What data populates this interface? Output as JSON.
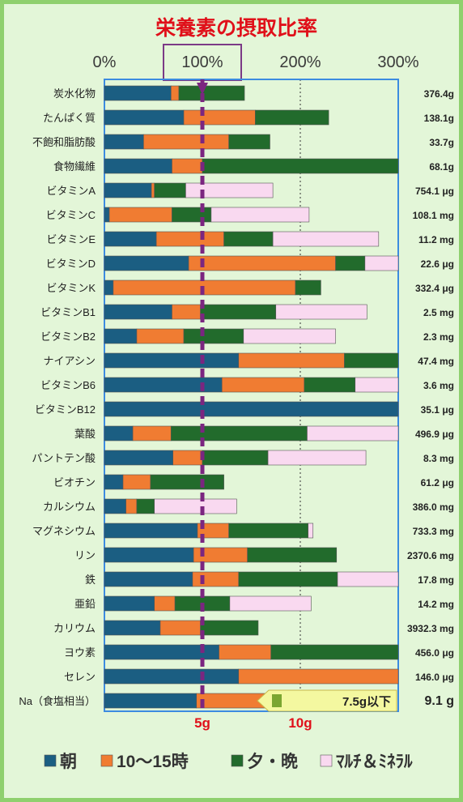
{
  "chart_data": {
    "type": "bar",
    "stacked": true,
    "orientation": "horizontal",
    "title": "栄養素の摂取比率",
    "x_ticks": [
      "0%",
      "100%",
      "200%",
      "300%"
    ],
    "xlim": [
      0,
      300
    ],
    "reference_line_label": "100%",
    "grid": true,
    "legend_position": "bottom",
    "series": [
      {
        "name": "朝",
        "color": "#1b5e82"
      },
      {
        "name": "10～15時",
        "color": "#f07c32"
      },
      {
        "name": "夕・晩",
        "color": "#226b2c"
      },
      {
        "name": "ﾏﾙﾁ＆ﾐﾈﾗﾙ",
        "color": "#f9d9f0"
      }
    ],
    "categories": [
      {
        "name": "炭水化物",
        "values": [
          68,
          8,
          67,
          0
        ],
        "amount": "376.4g"
      },
      {
        "name": "たんぱく質",
        "values": [
          81,
          73,
          75,
          0
        ],
        "amount": "138.1g"
      },
      {
        "name": "不飽和脂肪酸",
        "values": [
          40,
          87,
          42,
          0
        ],
        "amount": "33.7g"
      },
      {
        "name": "食物繊維",
        "values": [
          69,
          31,
          200,
          0
        ],
        "amount": "68.1g"
      },
      {
        "name": "ビタミンA",
        "values": [
          48,
          3,
          32,
          89
        ],
        "amount": "754.1 μg"
      },
      {
        "name": "ビタミンC",
        "values": [
          5,
          64,
          40,
          100
        ],
        "amount": "108.1 mg"
      },
      {
        "name": "ビタミンE",
        "values": [
          53,
          69,
          50,
          108
        ],
        "amount": "11.2 mg"
      },
      {
        "name": "ビタミンD",
        "values": [
          86,
          150,
          30,
          34
        ],
        "amount": "22.6 μg"
      },
      {
        "name": "ビタミンK",
        "values": [
          9,
          186,
          26,
          0
        ],
        "amount": "332.4 μg"
      },
      {
        "name": "ビタミンB1",
        "values": [
          69,
          29,
          77,
          93
        ],
        "amount": "2.5 mg"
      },
      {
        "name": "ビタミンB2",
        "values": [
          33,
          48,
          61,
          94
        ],
        "amount": "2.3 mg"
      },
      {
        "name": "ナイアシン",
        "values": [
          137,
          108,
          55,
          0
        ],
        "amount": "47.4 mg"
      },
      {
        "name": "ビタミンB6",
        "values": [
          120,
          84,
          52,
          44
        ],
        "amount": "3.6 mg"
      },
      {
        "name": "ビタミンB12",
        "values": [
          300,
          0,
          0,
          0
        ],
        "amount": "35.1 μg"
      },
      {
        "name": "葉酸",
        "values": [
          29,
          39,
          139,
          93
        ],
        "amount": "496.9 μg"
      },
      {
        "name": "パントテン酸",
        "values": [
          70,
          30,
          67,
          100
        ],
        "amount": "8.3 mg"
      },
      {
        "name": "ビオチン",
        "values": [
          19,
          28,
          75,
          0
        ],
        "amount": "61.2 μg"
      },
      {
        "name": "カルシウム",
        "values": [
          22,
          11,
          18,
          84
        ],
        "amount": "386.0 mg"
      },
      {
        "name": "マグネシウム",
        "values": [
          95,
          32,
          81,
          5
        ],
        "amount": "733.3 mg"
      },
      {
        "name": "リン",
        "values": [
          91,
          55,
          91,
          0
        ],
        "amount": "2370.6 mg"
      },
      {
        "name": "鉄",
        "values": [
          90,
          47,
          101,
          62
        ],
        "amount": "17.8 mg"
      },
      {
        "name": "亜鉛",
        "values": [
          51,
          21,
          56,
          83
        ],
        "amount": "14.2 mg"
      },
      {
        "name": "カリウム",
        "values": [
          57,
          41,
          59,
          0
        ],
        "amount": "3932.3 mg"
      },
      {
        "name": "ヨウ素",
        "values": [
          117,
          53,
          130,
          0
        ],
        "amount": "456.0 μg"
      },
      {
        "name": "セレン",
        "values": [
          137,
          163,
          0,
          0
        ],
        "amount": "146.0 μg"
      },
      {
        "name": "Na（食塩相当）",
        "values": [
          94,
          77,
          11,
          0
        ],
        "amount": "9.1 g"
      }
    ],
    "salt_axis_labels": [
      "5g",
      "10g"
    ],
    "salt_goal_label": "7.5g以下"
  }
}
